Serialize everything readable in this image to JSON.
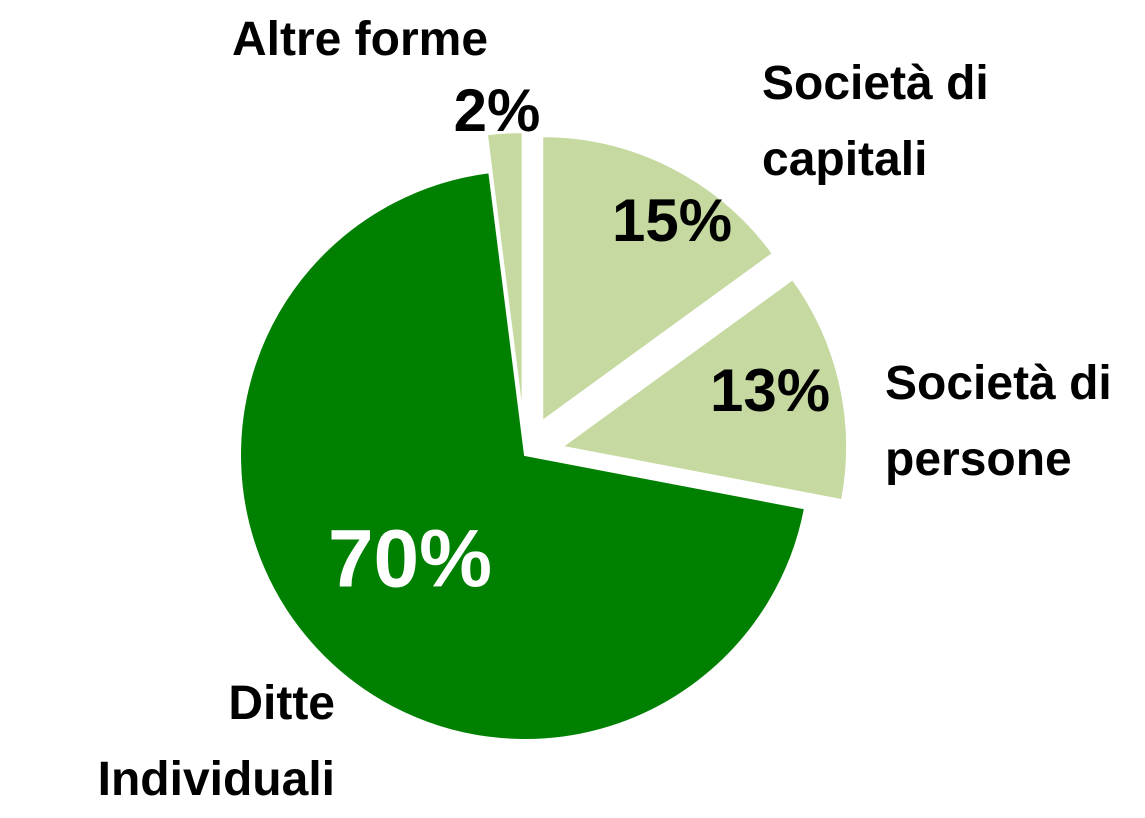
{
  "chart_data": {
    "type": "pie",
    "categories": [
      "Società di capitali",
      "Società di persone",
      "Ditte Individuali",
      "Altre forme"
    ],
    "values": [
      15,
      13,
      70,
      2
    ],
    "value_labels": [
      "15%",
      "13%",
      "70%",
      "2%"
    ],
    "colors": [
      "#c5d9a0",
      "#c5d9a0",
      "#008000",
      "#c5d9a0"
    ]
  }
}
